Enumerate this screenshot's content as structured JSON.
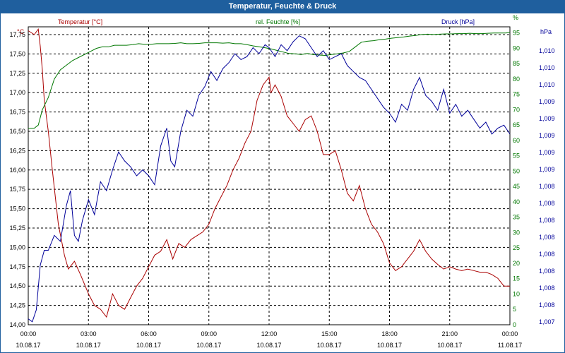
{
  "window": {
    "title": "Temperatur, Feuchte & Druck"
  },
  "colors": {
    "titlebar": "#1f5f9e",
    "temperature": "#aa0000",
    "humidity": "#007700",
    "pressure": "#000099",
    "grid": "#000000"
  },
  "chart_data": {
    "type": "line",
    "title": "Temperatur, Feuchte & Druck",
    "grid": true,
    "x_ticks": [
      {
        "time": "00:00",
        "date": "10.08.17"
      },
      {
        "time": "03:00",
        "date": "10.08.17"
      },
      {
        "time": "06:00",
        "date": "10.08.17"
      },
      {
        "time": "09:00",
        "date": "10.08.17"
      },
      {
        "time": "12:00",
        "date": "10.08.17"
      },
      {
        "time": "15:00",
        "date": "10.08.17"
      },
      {
        "time": "18:00",
        "date": "10.08.17"
      },
      {
        "time": "21:00",
        "date": "10.08.17"
      },
      {
        "time": "00:00",
        "date": "11.08.17"
      }
    ],
    "x_range": [
      0,
      24
    ],
    "axes": {
      "temperature": {
        "label": "Temperatur [°C]",
        "unit": "°C",
        "range": [
          14.0,
          17.85
        ],
        "ticks": [
          "14,00",
          "14,25",
          "14,50",
          "14,75",
          "15,00",
          "15,25",
          "15,50",
          "15,75",
          "16,00",
          "16,25",
          "16,50",
          "16,75",
          "17,00",
          "17,25",
          "17,50",
          "17,75"
        ]
      },
      "humidity": {
        "label": "rel. Feuchte [%]",
        "unit": "%",
        "range": [
          0,
          97
        ],
        "ticks": [
          "0",
          "5",
          "10",
          "15",
          "20",
          "25",
          "30",
          "35",
          "40",
          "45",
          "50",
          "55",
          "60",
          "65",
          "70",
          "75",
          "80",
          "85",
          "90",
          "95",
          "%"
        ]
      },
      "pressure": {
        "label": "Druck [hPa]",
        "unit": "hPa",
        "range": [
          0,
          1
        ],
        "ticks": [
          "1,007",
          "1,008",
          "1,008",
          "1,008",
          "1,008",
          "1,008",
          "1,008",
          "1,008",
          "1,008",
          "1,009",
          "1,009",
          "1,009",
          "1,009",
          "1,009",
          "1,010",
          "1,010",
          "1,010"
        ]
      }
    },
    "series": [
      {
        "name": "Temperatur [°C]",
        "axis": "temperature",
        "x": [
          0,
          0.3,
          0.5,
          0.6,
          0.7,
          0.8,
          1.0,
          1.2,
          1.5,
          1.8,
          2.0,
          2.3,
          2.6,
          3.0,
          3.3,
          3.6,
          3.9,
          4.2,
          4.5,
          4.8,
          5.1,
          5.4,
          5.7,
          6.0,
          6.3,
          6.6,
          6.9,
          7.2,
          7.5,
          7.8,
          8.1,
          8.4,
          8.7,
          9.0,
          9.3,
          9.6,
          9.9,
          10.2,
          10.5,
          10.8,
          11.1,
          11.4,
          11.7,
          12.0,
          12.1,
          12.3,
          12.6,
          12.9,
          13.2,
          13.5,
          13.8,
          14.1,
          14.4,
          14.7,
          15.0,
          15.3,
          15.6,
          15.9,
          16.2,
          16.5,
          16.8,
          17.1,
          17.4,
          17.7,
          18.0,
          18.3,
          18.6,
          18.9,
          19.2,
          19.5,
          19.8,
          20.1,
          20.4,
          20.7,
          21.0,
          21.3,
          21.6,
          21.9,
          22.2,
          22.5,
          22.8,
          23.1,
          23.4,
          23.7,
          24.0
        ],
        "y": [
          17.8,
          17.75,
          17.82,
          17.6,
          17.3,
          16.9,
          16.5,
          16.0,
          15.3,
          14.9,
          14.72,
          14.82,
          14.65,
          14.4,
          14.25,
          14.2,
          14.1,
          14.4,
          14.25,
          14.2,
          14.35,
          14.5,
          14.6,
          14.75,
          14.9,
          14.95,
          15.1,
          14.85,
          15.05,
          15.0,
          15.1,
          15.15,
          15.2,
          15.3,
          15.5,
          15.65,
          15.8,
          16.0,
          16.15,
          16.35,
          16.5,
          16.9,
          17.1,
          17.2,
          17.0,
          17.1,
          16.95,
          16.7,
          16.6,
          16.5,
          16.65,
          16.7,
          16.5,
          16.2,
          16.2,
          16.25,
          16.0,
          15.7,
          15.6,
          15.8,
          15.5,
          15.3,
          15.2,
          15.05,
          14.8,
          14.7,
          14.75,
          14.85,
          14.95,
          15.1,
          14.95,
          14.85,
          14.78,
          14.72,
          14.75,
          14.72,
          14.7,
          14.72,
          14.7,
          14.68,
          14.68,
          14.65,
          14.6,
          14.5,
          14.5
        ]
      },
      {
        "name": "rel. Feuchte [%]",
        "axis": "humidity",
        "x": [
          0,
          0.3,
          0.5,
          0.7,
          1.0,
          1.3,
          1.6,
          1.9,
          2.2,
          2.5,
          2.8,
          3.1,
          3.4,
          3.7,
          4.0,
          4.3,
          4.6,
          4.9,
          5.2,
          5.5,
          5.8,
          6.1,
          6.4,
          6.7,
          7.0,
          7.3,
          7.6,
          7.9,
          8.2,
          8.5,
          8.8,
          9.1,
          9.4,
          9.7,
          10.0,
          10.3,
          10.6,
          10.9,
          11.2,
          11.5,
          11.8,
          12.1,
          12.4,
          12.7,
          13.0,
          13.3,
          13.6,
          13.9,
          14.2,
          14.5,
          14.8,
          15.1,
          15.4,
          15.7,
          16.0,
          16.3,
          16.6,
          16.9,
          17.2,
          17.5,
          17.8,
          18.1,
          18.4,
          18.7,
          19.0,
          19.3,
          19.6,
          19.9,
          20.2,
          20.5,
          20.8,
          21.1,
          21.4,
          21.7,
          22.0,
          22.3,
          22.6,
          22.9,
          23.2,
          23.5,
          23.8,
          24.0
        ],
        "y": [
          64,
          64,
          65,
          70,
          74,
          80,
          83,
          84.5,
          86,
          87,
          88,
          89,
          90,
          90.5,
          90.5,
          91,
          91,
          91,
          91.2,
          91.5,
          91.3,
          91.3,
          91.5,
          91.5,
          91.5,
          91.6,
          91.8,
          91.5,
          91.5,
          91.6,
          91.8,
          91.8,
          91.8,
          91.7,
          91.8,
          91.5,
          91.5,
          91.2,
          90.8,
          90.5,
          90.2,
          89.8,
          89.3,
          88.8,
          88.3,
          88.2,
          88.0,
          88.3,
          88.0,
          87.8,
          87.7,
          88.0,
          88.2,
          88.5,
          89.0,
          90.5,
          92,
          92.3,
          92.5,
          92.8,
          93,
          93.3,
          93.5,
          93.7,
          94.0,
          94.2,
          94.5,
          94.6,
          94.5,
          94.6,
          94.7,
          94.7,
          94.8,
          94.8,
          94.9,
          94.8,
          94.8,
          94.9,
          95.0,
          95.0,
          95.0,
          95.2
        ]
      },
      {
        "name": "Druck [hPa]",
        "axis": "pressure",
        "x": [
          0,
          0.2,
          0.4,
          0.6,
          0.8,
          1.0,
          1.3,
          1.6,
          1.9,
          2.1,
          2.3,
          2.5,
          2.7,
          3.0,
          3.3,
          3.6,
          3.9,
          4.2,
          4.5,
          4.8,
          5.1,
          5.4,
          5.7,
          6.0,
          6.3,
          6.6,
          6.9,
          7.1,
          7.3,
          7.6,
          7.9,
          8.2,
          8.5,
          8.8,
          9.1,
          9.4,
          9.7,
          10.0,
          10.3,
          10.6,
          10.9,
          11.2,
          11.5,
          11.8,
          12.0,
          12.3,
          12.6,
          12.9,
          13.2,
          13.5,
          13.8,
          14.1,
          14.4,
          14.7,
          15.0,
          15.3,
          15.6,
          15.9,
          16.2,
          16.5,
          16.8,
          17.1,
          17.4,
          17.7,
          18.0,
          18.3,
          18.6,
          18.9,
          19.2,
          19.5,
          19.8,
          20.1,
          20.4,
          20.7,
          21.0,
          21.3,
          21.6,
          21.9,
          22.2,
          22.5,
          22.8,
          23.1,
          23.4,
          23.7,
          24.0
        ],
        "y": [
          0.02,
          0.01,
          0.05,
          0.2,
          0.25,
          0.25,
          0.3,
          0.28,
          0.4,
          0.45,
          0.3,
          0.28,
          0.35,
          0.42,
          0.37,
          0.48,
          0.45,
          0.52,
          0.58,
          0.55,
          0.53,
          0.5,
          0.52,
          0.5,
          0.47,
          0.6,
          0.66,
          0.55,
          0.53,
          0.65,
          0.72,
          0.7,
          0.77,
          0.8,
          0.85,
          0.82,
          0.86,
          0.88,
          0.91,
          0.89,
          0.9,
          0.93,
          0.91,
          0.94,
          0.93,
          0.9,
          0.94,
          0.92,
          0.95,
          0.97,
          0.96,
          0.93,
          0.9,
          0.92,
          0.89,
          0.9,
          0.91,
          0.87,
          0.85,
          0.83,
          0.82,
          0.79,
          0.76,
          0.73,
          0.71,
          0.68,
          0.74,
          0.72,
          0.79,
          0.83,
          0.77,
          0.75,
          0.72,
          0.79,
          0.71,
          0.74,
          0.7,
          0.72,
          0.69,
          0.66,
          0.68,
          0.64,
          0.66,
          0.67,
          0.64
        ]
      }
    ]
  }
}
